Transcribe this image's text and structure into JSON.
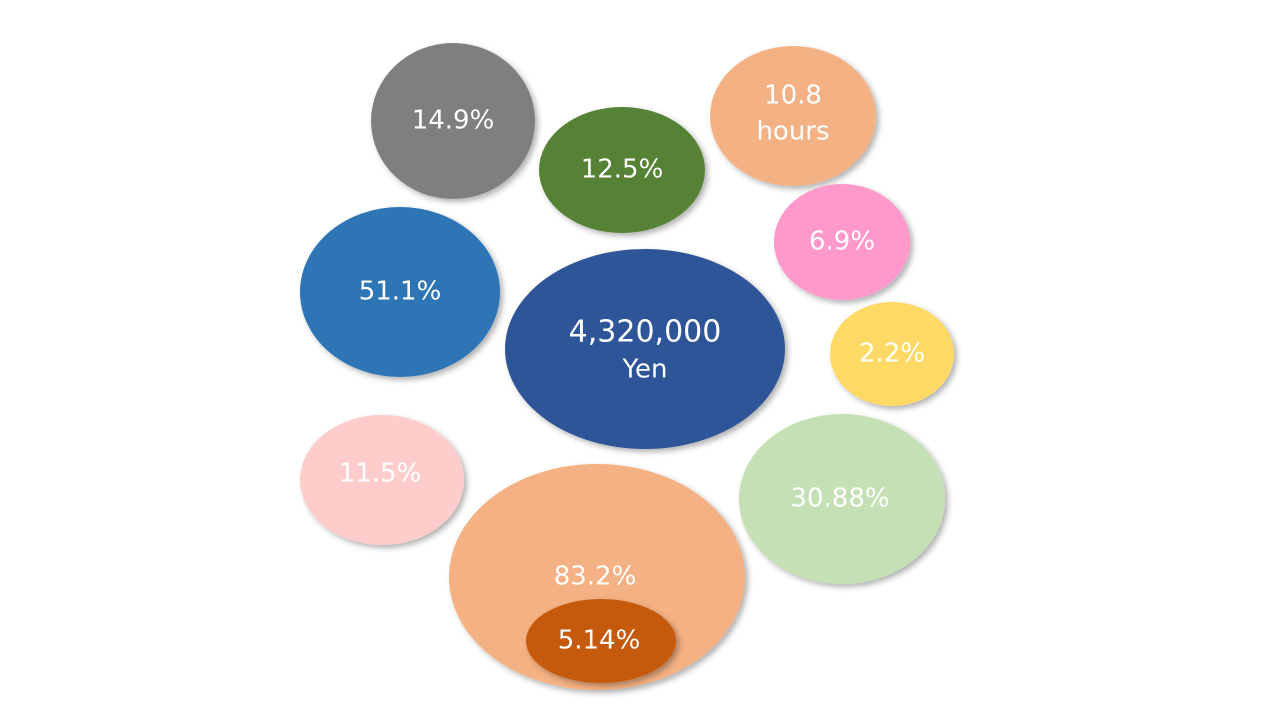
{
  "bubbles": [
    {
      "lines": [
        "14.9%"
      ]
    },
    {
      "lines": [
        "12.5%"
      ]
    },
    {
      "lines": [
        "10.8",
        "hours"
      ]
    },
    {
      "lines": [
        "6.9%"
      ]
    },
    {
      "lines": [
        "51.1%"
      ]
    },
    {
      "lines": [
        "4,320,000",
        "Yen"
      ]
    },
    {
      "lines": [
        "2.2%"
      ]
    },
    {
      "lines": [
        "11.5%"
      ]
    },
    {
      "lines": [
        "30.88%"
      ]
    },
    {
      "lines": [
        "83.2%"
      ]
    },
    {
      "lines": [
        "5.14%"
      ]
    }
  ]
}
